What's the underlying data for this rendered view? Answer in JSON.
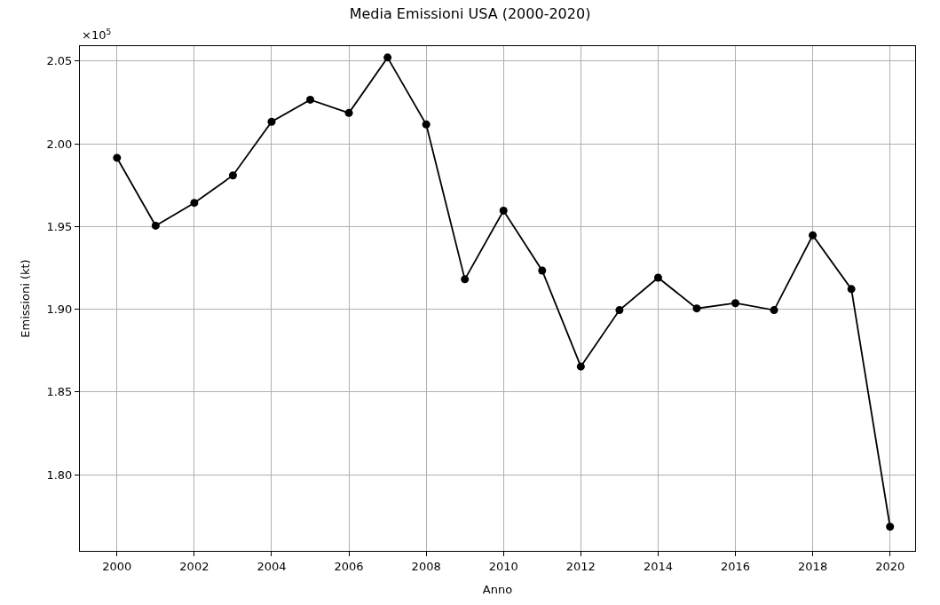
{
  "chart_data": {
    "type": "line",
    "title": "Media Emissioni USA (2000-2020)",
    "xlabel": "Anno",
    "ylabel": "Emissioni (kt)",
    "annotations": [
      "×10$^{5}$"
    ],
    "x": [
      2000,
      2001,
      2002,
      2003,
      2004,
      2005,
      2006,
      2007,
      2008,
      2009,
      2010,
      2011,
      2012,
      2013,
      2014,
      2015,
      2016,
      2017,
      2018,
      2019,
      2020
    ],
    "series": [
      {
        "color": "#000000",
        "values": [
          1.9915,
          1.9505,
          1.9643,
          1.9809,
          2.0133,
          2.0266,
          2.0186,
          2.0521,
          2.0117,
          1.9181,
          1.9596,
          1.9234,
          1.8654,
          1.8995,
          1.9191,
          1.9005,
          1.9037,
          1.8995,
          1.9447,
          1.9122,
          1.7686
        ]
      }
    ],
    "xlim": [
      1999.04,
      2020.65
    ],
    "xticks": [
      2000,
      2002,
      2004,
      2006,
      2008,
      2010,
      2012,
      2014,
      2016,
      2018,
      2020
    ],
    "ylim": [
      1.754,
      2.059
    ],
    "yticks": [
      {
        "value": 1.8,
        "label": "1.80"
      },
      1.85,
      {
        "value": 1.9,
        "label": "1.90"
      },
      1.95,
      {
        "value": 2.0,
        "label": "2.00"
      },
      2.05
    ],
    "grid": true,
    "marker": "circle",
    "line_style": "solid"
  }
}
